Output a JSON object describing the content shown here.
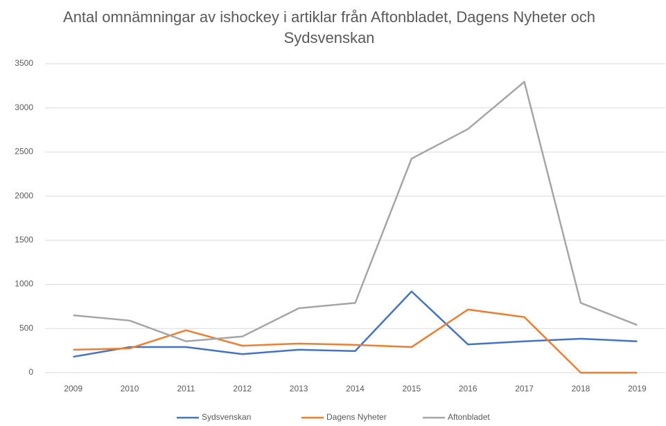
{
  "chart_data": {
    "type": "line",
    "title": "Antal omnämningar av ishockey i artiklar från Aftonbladet, Dagens Nyheter och Sydsvenskan",
    "categories": [
      "2009",
      "2010",
      "2011",
      "2012",
      "2013",
      "2014",
      "2015",
      "2016",
      "2017",
      "2018",
      "2019"
    ],
    "series": [
      {
        "name": "Sydsvenskan",
        "color": "#4472c4",
        "values": [
          180,
          290,
          290,
          210,
          260,
          245,
          920,
          320,
          355,
          385,
          355
        ]
      },
      {
        "name": "Dagens Nyheter",
        "color": "#ed7d31",
        "values": [
          260,
          275,
          480,
          305,
          330,
          315,
          290,
          715,
          630,
          0,
          0
        ]
      },
      {
        "name": "Aftonbladet",
        "color": "#a5a5a5",
        "values": [
          650,
          590,
          355,
          410,
          730,
          790,
          2425,
          2760,
          3295,
          790,
          540
        ]
      }
    ],
    "ylim": [
      0,
      3500
    ],
    "yticks": [
      0,
      500,
      1000,
      1500,
      2000,
      2500,
      3000,
      3500
    ],
    "grid": true,
    "legend": "bottom"
  }
}
